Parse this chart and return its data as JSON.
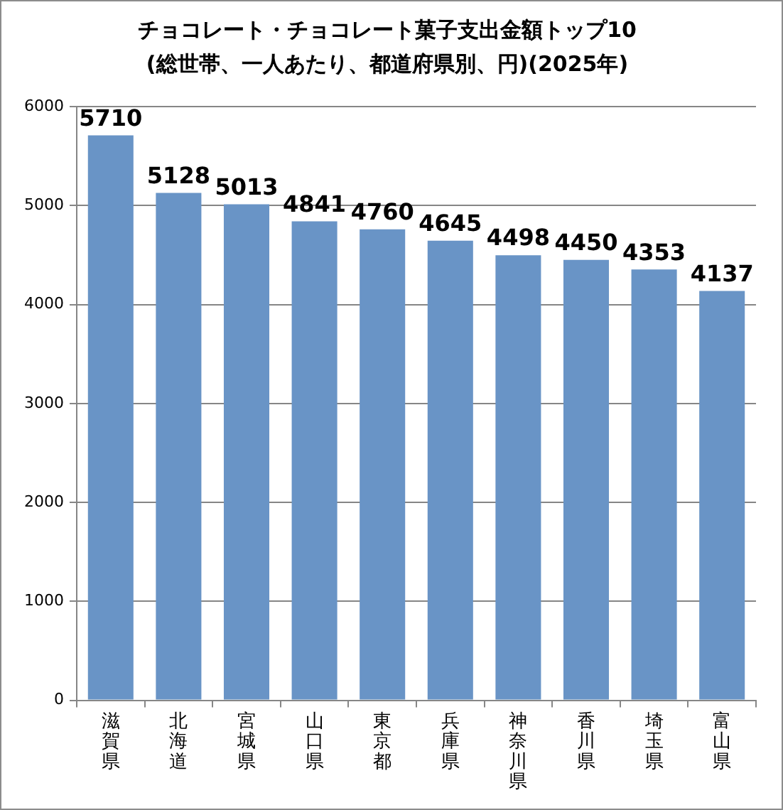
{
  "chart_data": {
    "type": "bar",
    "title": "チョコレート・チョコレート菓子支出金額トップ10",
    "subtitle": "(総世帯、一人あたり、都道府県別、円)(2025年)",
    "categories": [
      "滋賀県",
      "北海道",
      "宮城県",
      "山口県",
      "東京都",
      "兵庫県",
      "神奈川県",
      "香川県",
      "埼玉県",
      "富山県"
    ],
    "values": [
      5710,
      5128,
      5013,
      4841,
      4760,
      4645,
      4498,
      4450,
      4353,
      4137
    ],
    "color": "#6994c6",
    "ylim": [
      0,
      6000
    ],
    "yticks": [
      0,
      1000,
      2000,
      3000,
      4000,
      5000,
      6000
    ],
    "grid": "y",
    "data_labels": true
  }
}
